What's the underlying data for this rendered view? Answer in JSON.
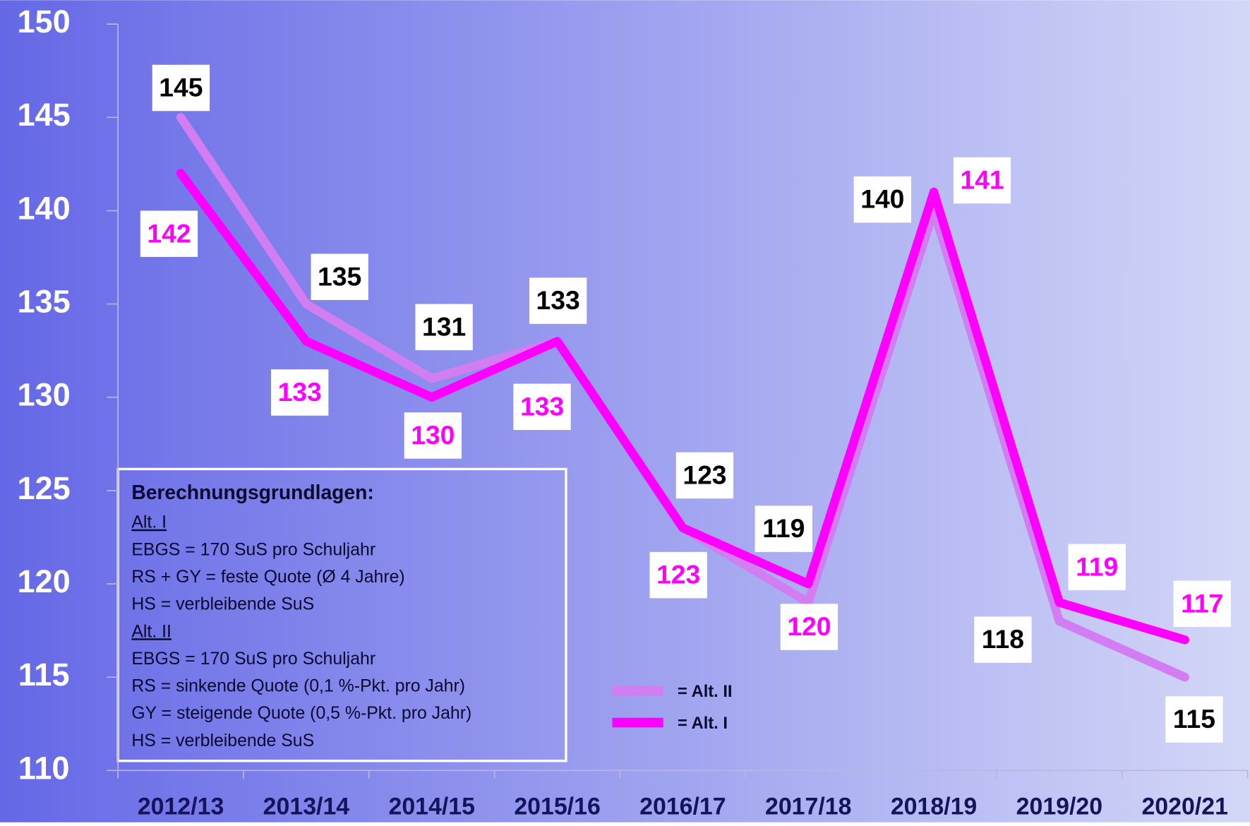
{
  "chart_data": {
    "type": "line",
    "categories": [
      "2012/13",
      "2013/14",
      "2014/15",
      "2015/16",
      "2016/17",
      "2017/18",
      "2018/19",
      "2019/20",
      "2020/21"
    ],
    "series": [
      {
        "name": "= Alt. II",
        "color": "#d27ef2",
        "values": [
          145,
          135,
          131,
          133,
          123,
          119,
          140,
          118,
          115
        ]
      },
      {
        "name": "= Alt. I",
        "color": "#ff00ff",
        "values": [
          142,
          133,
          130,
          133,
          123,
          120,
          141,
          119,
          117
        ]
      }
    ],
    "value_label_colors": [
      "#000000",
      "#ff00ff"
    ],
    "ylim": [
      110,
      150
    ],
    "yticks": [
      110,
      115,
      120,
      125,
      130,
      135,
      140,
      145,
      150
    ],
    "notes": {
      "title": "Berechnungsgrundlagen:",
      "lines": [
        {
          "text": "Alt. I",
          "underline": true
        },
        {
          "text": "EBGS = 170 SuS pro Schuljahr",
          "underline": false
        },
        {
          "text": "RS + GY = feste Quote (Ø 4 Jahre)",
          "underline": false
        },
        {
          "text": "HS = verbleibende SuS",
          "underline": false
        },
        {
          "text": "Alt. II",
          "underline": true
        },
        {
          "text": "EBGS = 170 SuS pro Schuljahr",
          "underline": false
        },
        {
          "text": "RS = sinkende Quote (0,1 %-Pkt. pro Jahr)",
          "underline": false
        },
        {
          "text": "GY = steigende Quote (0,5 %-Pkt. pro Jahr)",
          "underline": false
        },
        {
          "text": "HS = verbleibende SuS",
          "underline": false
        }
      ]
    }
  }
}
